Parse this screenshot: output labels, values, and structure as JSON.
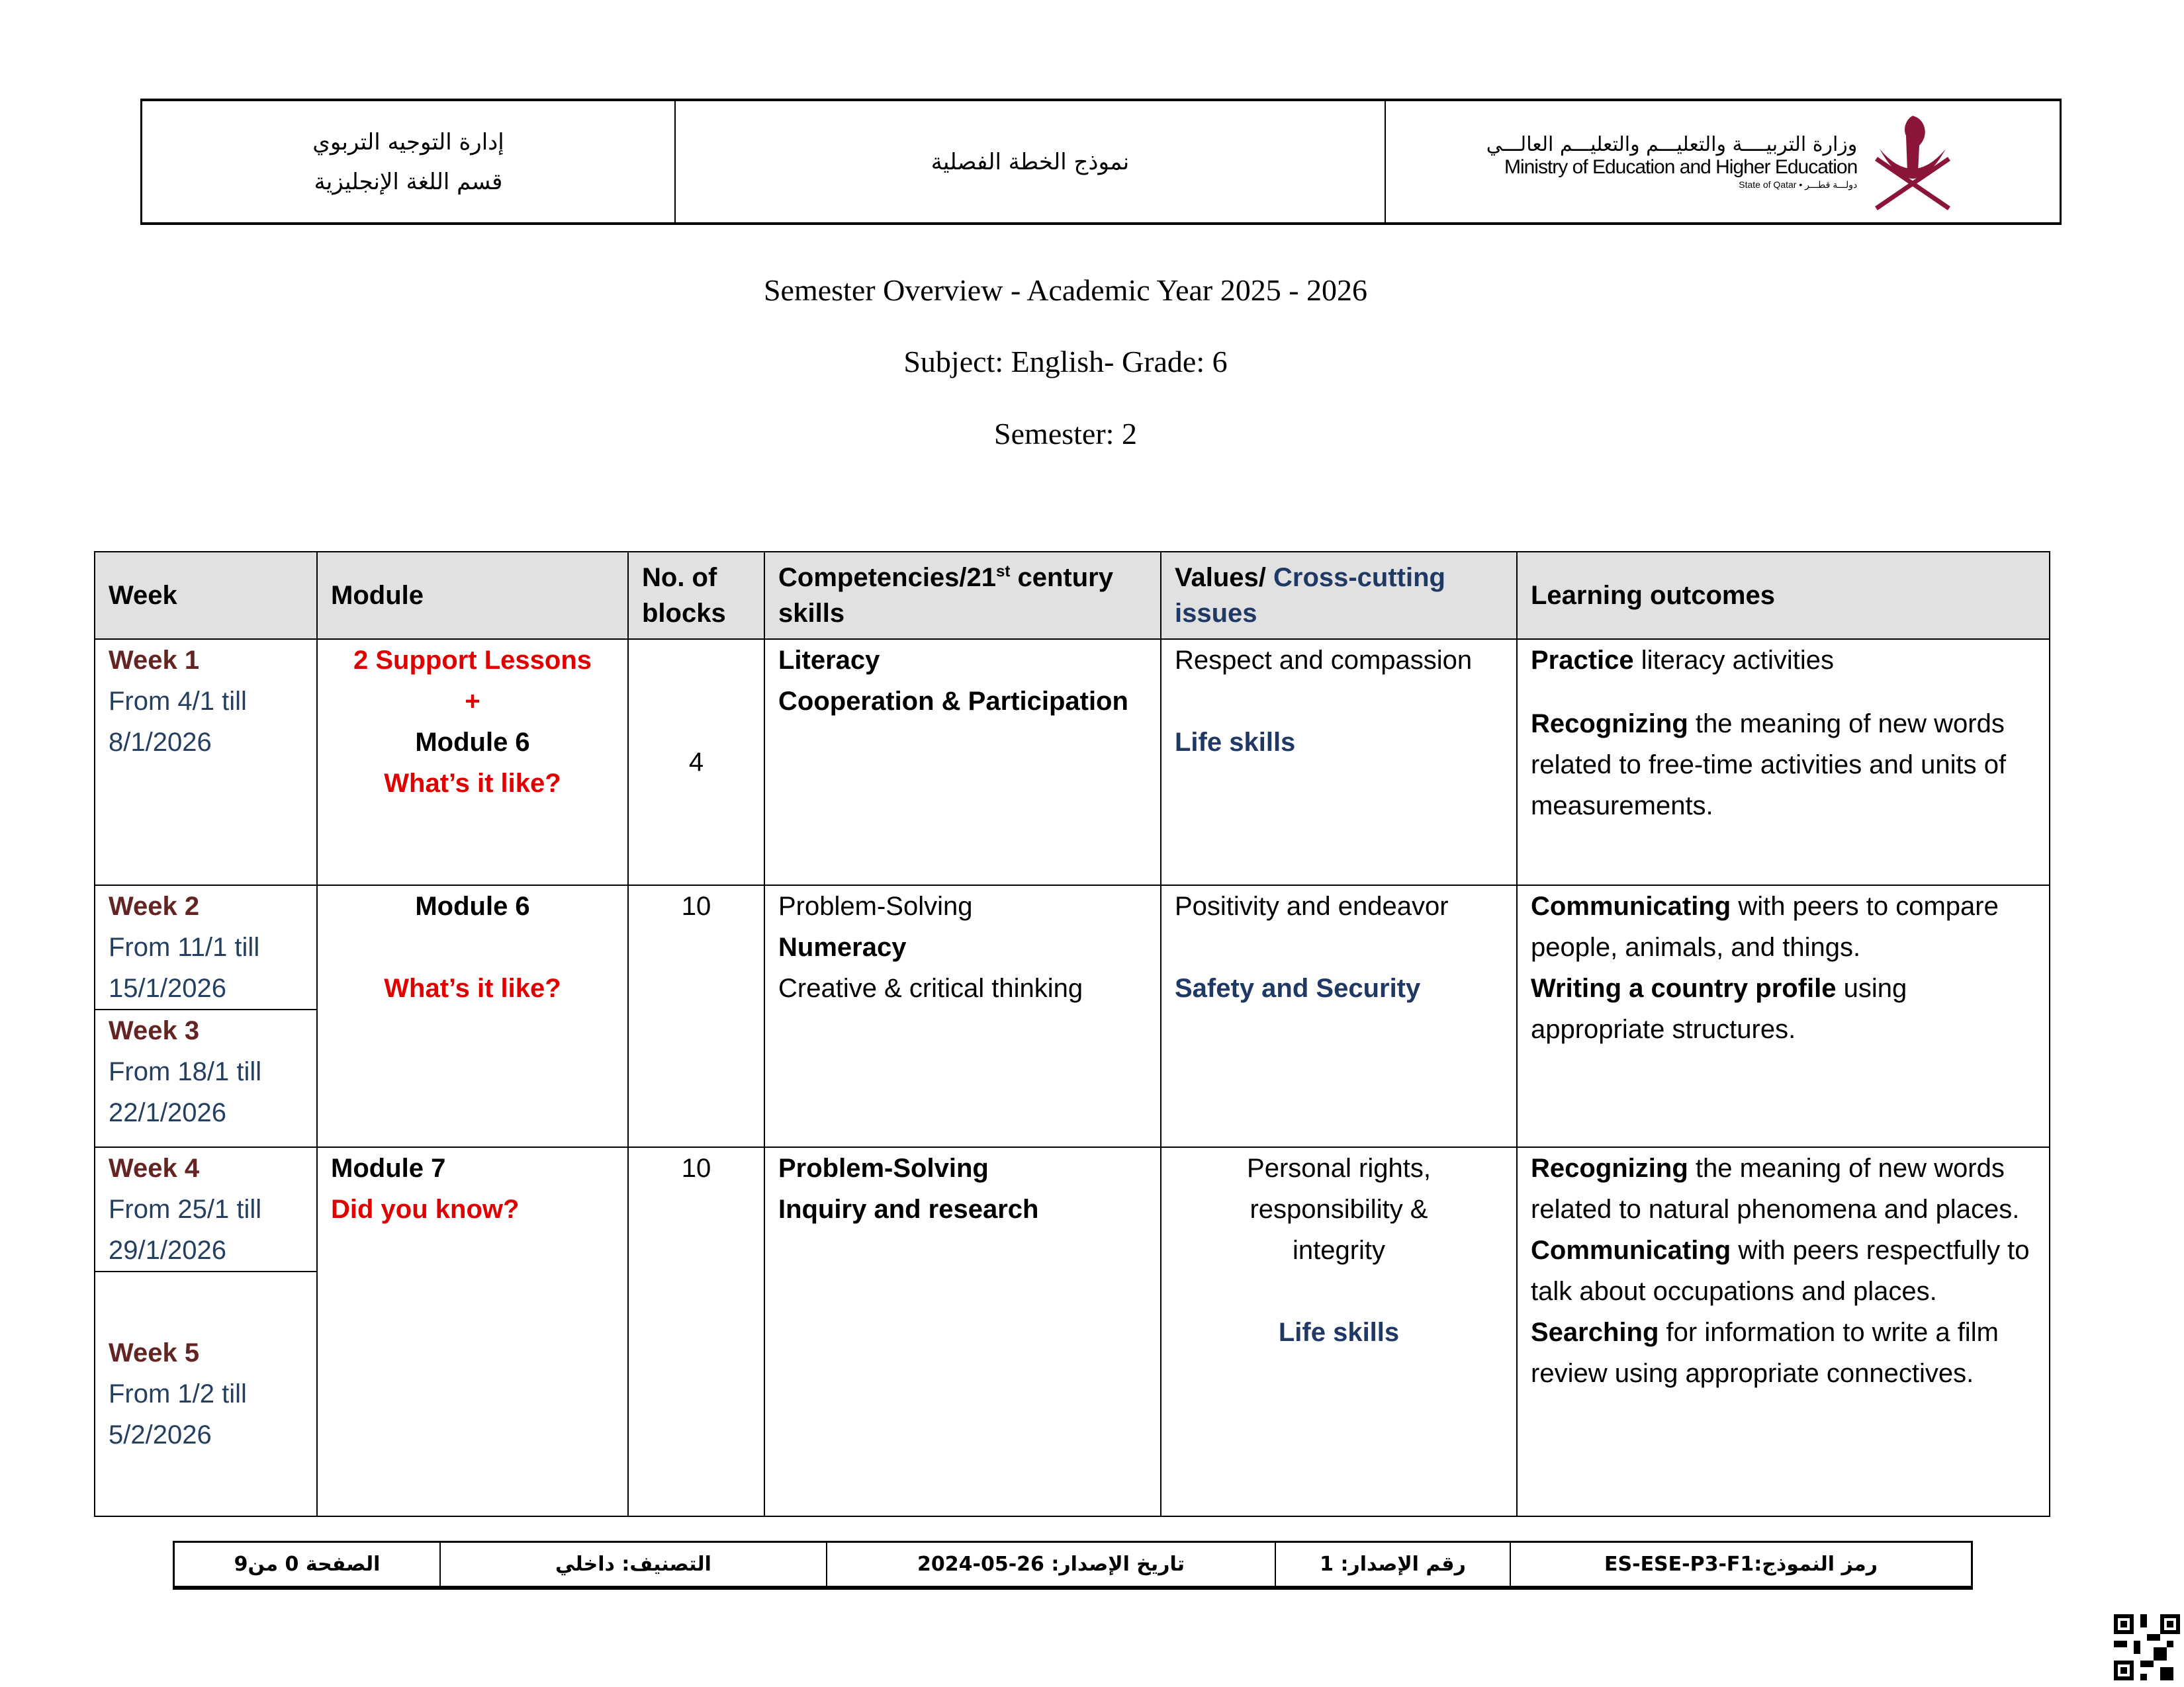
{
  "header": {
    "left_line1": "إدارة التوجيه التربوي",
    "left_line2": "قسم اللغة الإنجليزية",
    "center": "نموذج الخطة الفصلية",
    "logo_ar": "وزارة التربيــــة والتعليـــم والتعليـــم العالـــي",
    "logo_en": "Ministry of Education and Higher Education",
    "logo_state": "State of Qatar • دولـــة قطـــر",
    "logo_color": "#8a1538"
  },
  "titles": {
    "overview": "Semester Overview - Academic Year 2025 - 2026",
    "subject": "Subject: English-   Grade: 6",
    "semester": "Semester: 2"
  },
  "table": {
    "headers": {
      "week": "Week",
      "module": "Module",
      "blocks": "No. of blocks",
      "competencies_a": "Competencies/21",
      "competencies_sup": "st",
      "competencies_b": " century skills",
      "values_a": "Values/ ",
      "values_b": "Cross-cutting issues",
      "outcomes": "Learning outcomes"
    },
    "rows": [
      {
        "week": "Week 1",
        "dates": "From 4/1 till 8/1/2026",
        "module_l1": "2 Support Lessons",
        "module_l2": "+",
        "module_l3": "Module 6",
        "module_l4": "What’s it like?",
        "blocks": "4",
        "comp": [
          "Literacy",
          "Cooperation & Participation"
        ],
        "values": "Respect and compassion",
        "issue": "Life skills",
        "outcomes": [
          {
            "bold": "Practice",
            "text": " literacy activities"
          },
          {
            "bold": "Recognizing",
            "text": " the meaning of new words related to free-time activities and units of measurements."
          }
        ]
      },
      {
        "week": "Week 2",
        "dates": "From 11/1 till 15/1/2026",
        "week_b": "Week 3",
        "dates_b": "From 18/1 till 22/1/2026",
        "module_l1": "Module 6",
        "module_l2": "What’s it like?",
        "blocks": "10",
        "comp": [
          "Problem-Solving",
          "Numeracy",
          "Creative & critical thinking"
        ],
        "values": "Positivity and endeavor",
        "issue": "Safety and Security",
        "outcomes": [
          {
            "bold": "Communicating",
            "text": " with peers to compare people, animals, and things."
          },
          {
            "bold": "Writing a country profile",
            "text": " using appropriate structures."
          }
        ]
      },
      {
        "week": "Week 4",
        "dates": "From 25/1 till 29/1/2026",
        "week_b": "Week 5",
        "dates_b": "From 1/2 till 5/2/2026",
        "module_l1": "Module 7",
        "module_l2": "Did you know?",
        "blocks": "10",
        "comp": [
          "Problem-Solving",
          "Inquiry and research"
        ],
        "values": "Personal rights, responsibility & integrity",
        "issue": "Life skills",
        "outcomes": [
          {
            "bold": "Recognizing",
            "text": " the meaning of new words related to natural phenomena and places."
          },
          {
            "bold": "Communicating",
            "text": " with peers respectfully to talk about occupations and places."
          },
          {
            "bold": "Searching",
            "text": " for information to write a film review using appropriate connectives."
          }
        ]
      }
    ]
  },
  "footer": {
    "code": "رمز النموذج:ES-ESE-P3-F1",
    "version": "رقم الإصدار: 1",
    "date": "تاريخ الإصدار: 26-05-2024",
    "classification": "التصنيف: داخلي",
    "page": "الصفحة 0 من9"
  },
  "colors": {
    "week": "#632423",
    "dates": "#243f60",
    "module_title": "#e00000",
    "issue": "#1f3864",
    "header_bg": "#e1e1e1"
  }
}
